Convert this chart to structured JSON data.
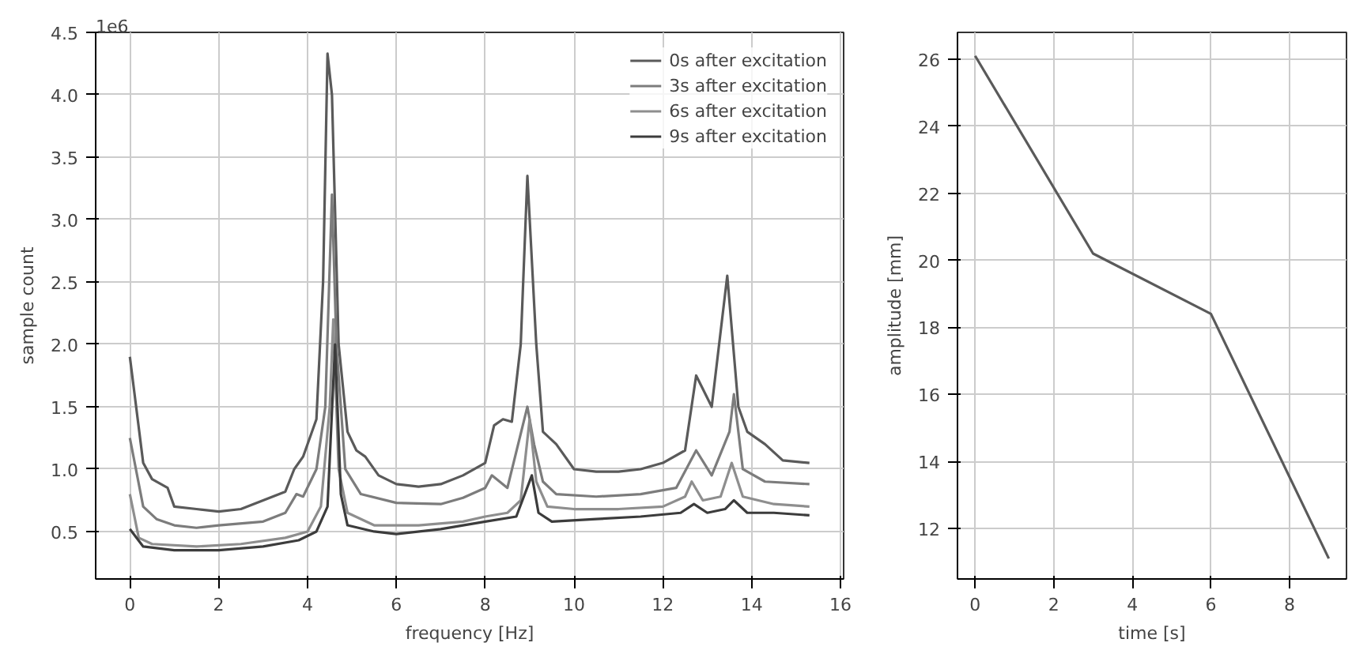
{
  "chart_data": [
    {
      "type": "line",
      "xlabel": "frequency [Hz]",
      "ylabel": "sample count",
      "annotations": [
        "1e6"
      ],
      "xlim": [
        -0.77,
        16.07
      ],
      "ylim": [
        0.12,
        4.5
      ],
      "xticks": [
        0,
        2,
        4,
        6,
        8,
        10,
        12,
        14,
        16
      ],
      "yticks": [
        {
          "value": 0.5,
          "label": "0.5"
        },
        {
          "value": 1,
          "label": "1.0"
        },
        {
          "value": 1.5,
          "label": "1.5"
        },
        {
          "value": 2,
          "label": "2.0"
        },
        {
          "value": 2.5,
          "label": "2.5"
        },
        {
          "value": 3,
          "label": "3.0"
        },
        {
          "value": 3.5,
          "label": "3.5"
        },
        {
          "value": 4,
          "label": "4.0"
        },
        {
          "value": 4.5,
          "label": "4.5"
        }
      ],
      "grid": true,
      "legend": "top right",
      "line_style": "solid",
      "series": [
        {
          "name": "0s after excitation",
          "color": "#5a5a5a",
          "x": [
            0,
            0.3,
            0.5,
            0.85,
            1.0,
            1.5,
            2,
            2.5,
            3,
            3.5,
            3.7,
            3.9,
            4.2,
            4.35,
            4.45,
            4.55,
            4.7,
            4.9,
            5.1,
            5.3,
            5.6,
            6,
            6.5,
            7,
            7.5,
            8,
            8.2,
            8.4,
            8.6,
            8.8,
            8.95,
            9.15,
            9.3,
            9.6,
            10,
            10.5,
            11,
            11.5,
            12,
            12.5,
            12.75,
            13.1,
            13.45,
            13.7,
            13.9,
            14.3,
            14.7,
            15.3
          ],
          "values": [
            1.9,
            1.05,
            0.92,
            0.85,
            0.7,
            0.68,
            0.66,
            0.68,
            0.75,
            0.82,
            1.0,
            1.1,
            1.4,
            2.5,
            4.33,
            4.0,
            2.0,
            1.3,
            1.15,
            1.1,
            0.95,
            0.88,
            0.86,
            0.88,
            0.95,
            1.05,
            1.35,
            1.4,
            1.38,
            2.0,
            3.35,
            2.0,
            1.3,
            1.2,
            1.0,
            0.98,
            0.98,
            1.0,
            1.05,
            1.15,
            1.75,
            1.5,
            2.55,
            1.5,
            1.3,
            1.2,
            1.07,
            1.05
          ]
        },
        {
          "name": "3s after excitation",
          "color": "#7c7c7c",
          "x": [
            0,
            0.3,
            0.6,
            1.0,
            1.5,
            2,
            3,
            3.5,
            3.75,
            3.9,
            4.2,
            4.4,
            4.55,
            4.65,
            4.85,
            5.2,
            6,
            7,
            7.5,
            8,
            8.15,
            8.5,
            8.95,
            9.1,
            9.3,
            9.6,
            10.5,
            11.5,
            12.3,
            12.75,
            13.1,
            13.5,
            13.6,
            13.8,
            14.3,
            15.3
          ],
          "values": [
            1.25,
            0.7,
            0.6,
            0.55,
            0.53,
            0.55,
            0.58,
            0.65,
            0.8,
            0.78,
            1.0,
            1.5,
            3.2,
            2.0,
            1.0,
            0.8,
            0.73,
            0.72,
            0.77,
            0.85,
            0.95,
            0.85,
            1.5,
            1.2,
            0.9,
            0.8,
            0.78,
            0.8,
            0.85,
            1.15,
            0.95,
            1.3,
            1.6,
            1.0,
            0.9,
            0.88
          ]
        },
        {
          "name": "6s after excitation",
          "color": "#8e8e8e",
          "x": [
            0,
            0.2,
            0.5,
            1.5,
            2.5,
            3.5,
            4,
            4.3,
            4.5,
            4.58,
            4.7,
            4.9,
            5.5,
            6.5,
            7.5,
            8,
            8.5,
            8.8,
            9.0,
            9.15,
            9.4,
            10,
            11,
            12,
            12.5,
            12.65,
            12.9,
            13.3,
            13.55,
            13.8,
            14.5,
            15.3
          ],
          "values": [
            0.8,
            0.45,
            0.4,
            0.38,
            0.4,
            0.45,
            0.5,
            0.7,
            1.5,
            2.2,
            1.0,
            0.65,
            0.55,
            0.55,
            0.58,
            0.62,
            0.65,
            0.75,
            1.4,
            0.9,
            0.7,
            0.68,
            0.68,
            0.7,
            0.78,
            0.9,
            0.75,
            0.78,
            1.05,
            0.78,
            0.72,
            0.7
          ]
        },
        {
          "name": "9s after excitation",
          "color": "#3c3c3c",
          "x": [
            0,
            0.3,
            1,
            2,
            3,
            3.8,
            4.2,
            4.45,
            4.62,
            4.75,
            4.9,
            5.5,
            6,
            7,
            8,
            8.7,
            9.05,
            9.2,
            9.5,
            10.5,
            11.5,
            12.4,
            12.7,
            13,
            13.4,
            13.6,
            13.9,
            14.5,
            15.3
          ],
          "values": [
            0.52,
            0.38,
            0.35,
            0.35,
            0.38,
            0.43,
            0.5,
            0.7,
            2.0,
            0.8,
            0.55,
            0.5,
            0.48,
            0.52,
            0.58,
            0.62,
            0.95,
            0.65,
            0.58,
            0.6,
            0.62,
            0.65,
            0.72,
            0.65,
            0.68,
            0.75,
            0.65,
            0.65,
            0.63
          ]
        }
      ]
    },
    {
      "type": "line",
      "xlabel": "time [s]",
      "ylabel": "amplitude [mm]",
      "xlim": [
        -0.45,
        9.45
      ],
      "ylim": [
        10.49,
        26.8
      ],
      "xticks": [
        0,
        2,
        4,
        6,
        8
      ],
      "yticks": [
        12,
        14,
        16,
        18,
        20,
        22,
        24,
        26
      ],
      "grid": true,
      "line_style": "solid",
      "series": [
        {
          "color": "#5a5a5a",
          "x": [
            0,
            3,
            6,
            9
          ],
          "values": [
            26.1,
            20.2,
            18.4,
            11.1
          ]
        }
      ]
    }
  ]
}
